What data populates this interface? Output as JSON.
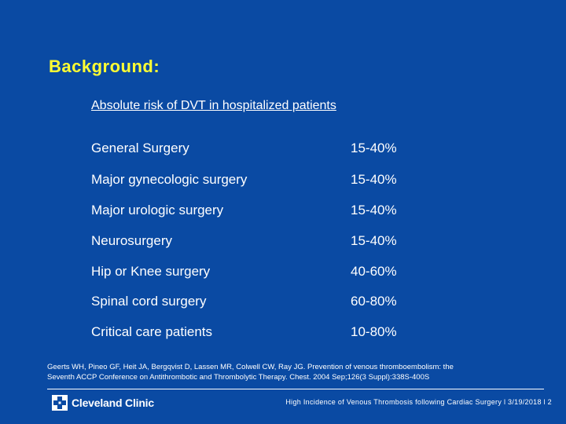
{
  "slide": {
    "title": "Background:",
    "subtitle": "Absolute risk of DVT in hospitalized patients",
    "rows": [
      {
        "label": "General Surgery",
        "value": "15-40%"
      },
      {
        "label": "Major gynecologic surgery",
        "value": "15-40%"
      },
      {
        "label": "Major urologic surgery",
        "value": "15-40%"
      },
      {
        "label": "Neurosurgery",
        "value": "15-40%"
      },
      {
        "label": "Hip or Knee surgery",
        "value": "40-60%"
      },
      {
        "label": "Spinal cord surgery",
        "value": "60-80%"
      },
      {
        "label": "Critical care patients",
        "value": "10-80%"
      }
    ],
    "citation_line1": "Geerts WH, Pineo GF, Heit JA, Bergqvist D, Lassen MR, Colwell CW, Ray JG. Prevention of venous thromboembolism: the",
    "citation_line2": "Seventh ACCP Conference on Antithrombotic and Thrombolytic Therapy. Chest. 2004 Sep;126(3 Suppl):338S-400S"
  },
  "footer": {
    "logo_text": "Cleveland Clinic",
    "logo_icon": "cleveland-clinic-logo-icon",
    "text": "High Incidence of Venous Thrombosis following Cardiac Surgery l  3/19/2018  l  2"
  },
  "colors": {
    "background": "#0a4aa3",
    "title": "#ffff33",
    "text": "#ffffff"
  }
}
